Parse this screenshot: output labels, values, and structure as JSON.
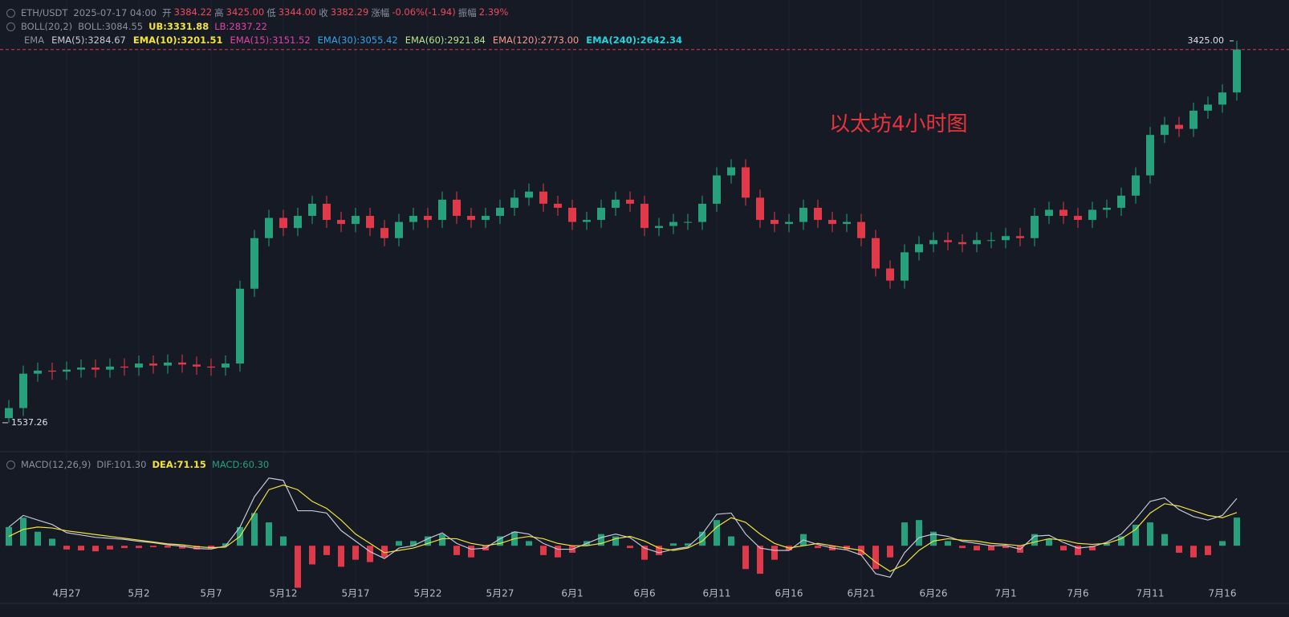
{
  "header": {
    "symbol": "ETH/USDT",
    "time": "2025-07-17 04:00",
    "open_label": "开",
    "open": "3384.22",
    "high_label": "高",
    "high": "3425.00",
    "low_label": "低",
    "low": "3344.00",
    "close_label": "收",
    "close": "3382.29",
    "change_label": "涨幅",
    "change": "-0.06%(-1.94)",
    "amplitude_label": "振幅",
    "amplitude": "2.39%",
    "boll": {
      "name": "BOLL(20,2)",
      "mid": "BOLL:3084.55",
      "ub": "UB:3331.88",
      "lb": "LB:2837.22"
    },
    "ema": {
      "name": "EMA",
      "items": [
        "EMA(5):3284.67",
        "EMA(10):3201.51",
        "EMA(15):3151.52",
        "EMA(30):3055.42",
        "EMA(60):2921.84",
        "EMA(120):2773.00",
        "EMA(240):2642.34"
      ]
    },
    "macd": {
      "name": "MACD(12,26,9)",
      "dif": "DIF:101.30",
      "dea": "DEA:71.15",
      "hist": "MACD:60.30"
    }
  },
  "chart_data": [
    {
      "type": "candlestick",
      "annotation": "以太坊4小时图",
      "up_color": "#26a17b",
      "down_color": "#e0394a",
      "categories": [
        null,
        null,
        null,
        null,
        "4月27",
        null,
        null,
        null,
        null,
        "5月2",
        null,
        null,
        null,
        null,
        "5月7",
        null,
        null,
        null,
        null,
        "5月12",
        null,
        null,
        null,
        null,
        "5月17",
        null,
        null,
        null,
        null,
        "5月22",
        null,
        null,
        null,
        null,
        "5月27",
        null,
        null,
        null,
        null,
        "6月1",
        null,
        null,
        null,
        null,
        "6月6",
        null,
        null,
        null,
        null,
        "6月11",
        null,
        null,
        null,
        null,
        "6月16",
        null,
        null,
        null,
        null,
        "6月21",
        null,
        null,
        null,
        null,
        "6月26",
        null,
        null,
        null,
        null,
        "7月1",
        null,
        null,
        null,
        null,
        "7月6",
        null,
        null,
        null,
        null,
        "7月11",
        null,
        null,
        null,
        null,
        "7月16",
        null
      ],
      "open": [
        1560,
        1610,
        1780,
        1795,
        1790,
        1800,
        1810,
        1800,
        1815,
        1810,
        1830,
        1820,
        1835,
        1825,
        1815,
        1810,
        1830,
        2200,
        2450,
        2550,
        2500,
        2560,
        2620,
        2540,
        2520,
        2560,
        2500,
        2450,
        2530,
        2560,
        2540,
        2640,
        2560,
        2540,
        2560,
        2600,
        2650,
        2680,
        2620,
        2600,
        2530,
        2540,
        2600,
        2640,
        2620,
        2500,
        2510,
        2530,
        2530,
        2620,
        2760,
        2800,
        2650,
        2540,
        2520,
        2530,
        2600,
        2540,
        2520,
        2530,
        2450,
        2300,
        2240,
        2380,
        2420,
        2440,
        2430,
        2420,
        2440,
        2440,
        2460,
        2450,
        2560,
        2590,
        2560,
        2540,
        2590,
        2600,
        2660,
        2760,
        2960,
        3010,
        2990,
        3080,
        3110,
        3170
      ],
      "high": [
        1650,
        1820,
        1835,
        1835,
        1840,
        1850,
        1850,
        1855,
        1855,
        1870,
        1870,
        1875,
        1875,
        1865,
        1855,
        1870,
        2240,
        2490,
        2590,
        2590,
        2600,
        2660,
        2660,
        2580,
        2600,
        2600,
        2540,
        2570,
        2600,
        2600,
        2680,
        2680,
        2600,
        2600,
        2640,
        2690,
        2720,
        2720,
        2660,
        2640,
        2580,
        2640,
        2680,
        2680,
        2660,
        2550,
        2570,
        2570,
        2660,
        2800,
        2840,
        2840,
        2690,
        2580,
        2570,
        2640,
        2640,
        2580,
        2570,
        2570,
        2490,
        2340,
        2420,
        2460,
        2480,
        2480,
        2470,
        2480,
        2480,
        2500,
        2500,
        2600,
        2630,
        2630,
        2600,
        2630,
        2640,
        2700,
        2800,
        3000,
        3050,
        3050,
        3120,
        3150,
        3210,
        3425
      ],
      "low": [
        1537.26,
        1570,
        1740,
        1750,
        1750,
        1760,
        1760,
        1760,
        1770,
        1770,
        1780,
        1780,
        1785,
        1775,
        1770,
        1770,
        1790,
        2160,
        2410,
        2460,
        2460,
        2520,
        2500,
        2480,
        2480,
        2460,
        2410,
        2410,
        2490,
        2500,
        2500,
        2520,
        2500,
        2500,
        2520,
        2560,
        2610,
        2580,
        2560,
        2490,
        2490,
        2500,
        2560,
        2580,
        2460,
        2460,
        2470,
        2490,
        2490,
        2580,
        2720,
        2610,
        2500,
        2480,
        2480,
        2490,
        2500,
        2480,
        2480,
        2410,
        2260,
        2200,
        2200,
        2340,
        2380,
        2390,
        2380,
        2380,
        2400,
        2400,
        2410,
        2410,
        2520,
        2520,
        2500,
        2500,
        2550,
        2560,
        2620,
        2720,
        2920,
        2950,
        2950,
        3040,
        3070,
        3130
      ],
      "close": [
        1610,
        1780,
        1795,
        1790,
        1800,
        1810,
        1800,
        1815,
        1810,
        1830,
        1820,
        1835,
        1825,
        1815,
        1810,
        1830,
        2200,
        2450,
        2550,
        2500,
        2560,
        2620,
        2540,
        2520,
        2560,
        2500,
        2450,
        2530,
        2560,
        2540,
        2640,
        2560,
        2540,
        2560,
        2600,
        2650,
        2680,
        2620,
        2600,
        2530,
        2540,
        2600,
        2640,
        2620,
        2500,
        2510,
        2530,
        2530,
        2620,
        2760,
        2800,
        2650,
        2540,
        2520,
        2530,
        2600,
        2540,
        2520,
        2530,
        2450,
        2300,
        2240,
        2380,
        2420,
        2440,
        2430,
        2420,
        2440,
        2440,
        2460,
        2450,
        2560,
        2590,
        2560,
        2540,
        2590,
        2600,
        2660,
        2760,
        2960,
        3010,
        2990,
        3080,
        3110,
        3170,
        3382.29
      ],
      "high_marker": {
        "value": 3425,
        "label": "3425.00"
      },
      "low_marker": 1537.26,
      "ylim": [
        1406,
        3627
      ]
    },
    {
      "type": "macd",
      "up_color": "#26a17b",
      "down_color": "#e0394a",
      "dif_color": "#c4c6d4",
      "dea_color": "#f2e33a",
      "hist": [
        40,
        60,
        30,
        15,
        -8,
        -10,
        -12,
        -8,
        -5,
        -5,
        -3,
        -4,
        -6,
        -8,
        -6,
        5,
        40,
        70,
        50,
        20,
        -90,
        -40,
        -20,
        -45,
        -30,
        -35,
        -25,
        10,
        10,
        20,
        25,
        -20,
        -25,
        -10,
        20,
        30,
        10,
        -20,
        -25,
        -15,
        10,
        25,
        20,
        -5,
        -30,
        -20,
        5,
        5,
        30,
        55,
        20,
        -50,
        -60,
        -30,
        -10,
        25,
        -5,
        -10,
        -8,
        -20,
        -50,
        -25,
        50,
        55,
        30,
        10,
        -5,
        -10,
        -10,
        -5,
        -15,
        25,
        15,
        -10,
        -20,
        -10,
        5,
        20,
        45,
        50,
        25,
        -15,
        -25,
        -20,
        10,
        60.3
      ],
      "dea": [
        20,
        35,
        40,
        38,
        32,
        28,
        24,
        20,
        16,
        12,
        8,
        4,
        2,
        -2,
        -4,
        -3,
        20,
        70,
        120,
        130,
        120,
        95,
        80,
        55,
        25,
        5,
        -15,
        -10,
        -5,
        5,
        15,
        15,
        5,
        0,
        5,
        15,
        20,
        15,
        5,
        0,
        0,
        5,
        15,
        20,
        10,
        -5,
        -10,
        -5,
        10,
        40,
        60,
        50,
        25,
        5,
        -5,
        0,
        5,
        0,
        -5,
        -10,
        -35,
        -55,
        -40,
        -10,
        10,
        15,
        12,
        10,
        5,
        3,
        0,
        8,
        15,
        12,
        5,
        3,
        5,
        15,
        35,
        70,
        90,
        85,
        75,
        65,
        60,
        71.15
      ],
      "dif": [
        40,
        65,
        55,
        45.5,
        28,
        23,
        18,
        16,
        13.5,
        9.5,
        6.5,
        2,
        -1,
        -6,
        -7,
        -0.5,
        40,
        105,
        145,
        140,
        75,
        75,
        70,
        32.5,
        10,
        -12.5,
        -27.5,
        -5,
        0,
        15,
        27.5,
        5,
        -7.5,
        -5,
        15,
        30,
        25,
        5,
        -7.5,
        -7.5,
        5,
        17.5,
        25,
        17.5,
        -5,
        -15,
        -7.5,
        -2.5,
        25,
        67.5,
        70,
        25,
        -5,
        -10,
        -10,
        12.5,
        2.5,
        -5,
        -9,
        -20,
        -60,
        -67.5,
        -15,
        17.5,
        25,
        20,
        9.5,
        5,
        0,
        0.5,
        -7.5,
        20.5,
        22.5,
        7,
        -5,
        -2,
        7.5,
        25,
        57.5,
        95,
        102.5,
        77.5,
        62.5,
        55,
        65,
        101.3
      ],
      "ylim": [
        -120,
        155
      ]
    }
  ]
}
